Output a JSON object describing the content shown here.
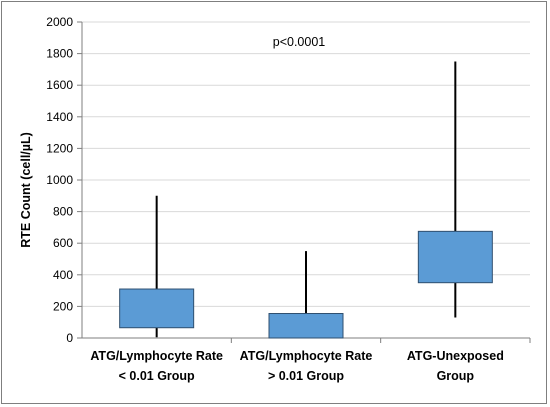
{
  "chart_data": {
    "type": "box",
    "title": "",
    "annotation": "p<0.0001",
    "ylabel": "RTE Count (cell/µL)",
    "xlabel": "",
    "ylim": [
      0,
      2000
    ],
    "yticks": [
      0,
      200,
      400,
      600,
      800,
      1000,
      1200,
      1400,
      1600,
      1800,
      2000
    ],
    "grid": "horizontal",
    "legend": "none",
    "box_color": "#5B9BD5",
    "box_edge": "#2F4F6F",
    "categories": [
      [
        "ATG/Lymphocyte Rate",
        "< 0.01 Group"
      ],
      [
        "ATG/Lymphocyte Rate",
        "> 0.01 Group"
      ],
      [
        "ATG-Unexposed",
        "Group"
      ]
    ],
    "boxes": [
      {
        "min": 5,
        "q1": 65,
        "q3": 310,
        "max": 900
      },
      {
        "min": 0,
        "q1": 0,
        "q3": 155,
        "max": 550
      },
      {
        "min": 130,
        "q1": 350,
        "q3": 675,
        "max": 1750
      }
    ]
  }
}
